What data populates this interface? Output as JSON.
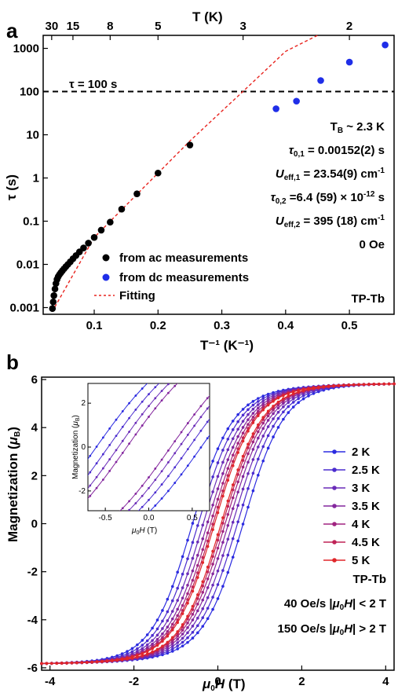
{
  "chart_data": [
    {
      "panel": "a",
      "type": "scatter",
      "xlabel": "T⁻¹ (K⁻¹)",
      "ylabel": "τ (s)",
      "top_axis_label": "T (K)",
      "top_ticks": [
        "30",
        "15",
        "8",
        "5",
        "3",
        "2"
      ],
      "top_tick_values_K": [
        30,
        15,
        8,
        5,
        3,
        2
      ],
      "xlim": [
        0.02,
        0.57
      ],
      "ylim": [
        0.0007,
        2000
      ],
      "yscale": "log",
      "xticks": [
        "0.1",
        "0.2",
        "0.3",
        "0.4",
        "0.5"
      ],
      "yticks": [
        "0.001",
        "0.01",
        "0.1",
        "1",
        "10",
        "100",
        "1000"
      ],
      "hline": {
        "y": 100,
        "label": "τ = 100 s"
      },
      "series": [
        {
          "name": "from ac measurements",
          "color": "#000000",
          "points": [
            [
              0.0345,
              0.00095
            ],
            [
              0.0357,
              0.00135
            ],
            [
              0.0368,
              0.0019
            ],
            [
              0.0385,
              0.0027
            ],
            [
              0.04,
              0.0036
            ],
            [
              0.0417,
              0.0045
            ],
            [
              0.0435,
              0.0052
            ],
            [
              0.0455,
              0.0058
            ],
            [
              0.0476,
              0.0064
            ],
            [
              0.05,
              0.0071
            ],
            [
              0.0526,
              0.0079
            ],
            [
              0.0556,
              0.0089
            ],
            [
              0.0588,
              0.01
            ],
            [
              0.0625,
              0.0115
            ],
            [
              0.0667,
              0.0135
            ],
            [
              0.0714,
              0.016
            ],
            [
              0.0769,
              0.0195
            ],
            [
              0.0833,
              0.024
            ],
            [
              0.0909,
              0.031
            ],
            [
              0.1,
              0.042
            ],
            [
              0.111,
              0.062
            ],
            [
              0.125,
              0.095
            ],
            [
              0.143,
              0.19
            ],
            [
              0.167,
              0.43
            ],
            [
              0.2,
              1.3
            ],
            [
              0.25,
              5.8
            ]
          ]
        },
        {
          "name": "from dc measurements",
          "color": "#1f2ee8",
          "points": [
            [
              0.385,
              40
            ],
            [
              0.417,
              60
            ],
            [
              0.455,
              180
            ],
            [
              0.5,
              480
            ],
            [
              0.556,
              1200
            ]
          ]
        },
        {
          "name": "Fitting",
          "color": "#e8241f",
          "line": [
            [
              0.034,
              0.0008
            ],
            [
              0.1,
              0.042
            ],
            [
              0.2,
              1.3
            ],
            [
              0.25,
              7.2
            ],
            [
              0.333,
              100
            ],
            [
              0.4,
              850
            ],
            [
              0.45,
              2000
            ]
          ]
        }
      ],
      "annotations": [
        "T_B ~ 2.3 K",
        "τ_0,1 = 0.00152(2) s",
        "U_eff,1 = 23.54(9) cm⁻¹",
        "τ_0,2 =6.4 (59) × 10⁻¹² s",
        "U_eff,2 = 395 (18) cm⁻¹",
        "0 Oe"
      ],
      "legend": "bottom-left",
      "compound_label": "TP-Tb"
    },
    {
      "panel": "b",
      "type": "line",
      "xlabel": "μ0H (T)",
      "ylabel": "Magnetization (μB)",
      "xlim": [
        -4.2,
        4.2
      ],
      "ylim": [
        -6.1,
        6.1
      ],
      "xticks": [
        "-4",
        "-2",
        "0",
        "2",
        "4"
      ],
      "yticks": [
        "-6",
        "-4",
        "-2",
        "0",
        "2",
        "4",
        "6"
      ],
      "series": [
        {
          "name": "2 K",
          "color": "#2b2be0",
          "Ms": 5.85,
          "Hc": 0.62
        },
        {
          "name": "2.5 K",
          "color": "#4b2dcf",
          "Ms": 5.85,
          "Hc": 0.48
        },
        {
          "name": "3 K",
          "color": "#6a2cb8",
          "Ms": 5.85,
          "Hc": 0.36
        },
        {
          "name": "3.5 K",
          "color": "#84279e",
          "Ms": 5.85,
          "Hc": 0.26
        },
        {
          "name": "4 K",
          "color": "#a02480",
          "Ms": 5.85,
          "Hc": 0.18
        },
        {
          "name": "4.5 K",
          "color": "#bf2357",
          "Ms": 5.85,
          "Hc": 0.12
        },
        {
          "name": "5 K",
          "color": "#e0262a",
          "Ms": 5.85,
          "Hc": 0.08
        }
      ],
      "legend": "right",
      "compound_label": "TP-Tb",
      "sweep_notes": [
        "40 Oe/s |μ0H| < 2 T",
        "150 Oe/s |μ0H| > 2 T"
      ],
      "inset": {
        "xlabel": "μ0H (T)",
        "ylabel": "Magnetization (μB)",
        "xlim": [
          -0.7,
          0.7
        ],
        "ylim": [
          -2.9,
          2.9
        ],
        "xticks": [
          "-0.5",
          "0.0",
          "0.5"
        ],
        "yticks": [
          "-2",
          "0",
          "2"
        ]
      }
    }
  ]
}
